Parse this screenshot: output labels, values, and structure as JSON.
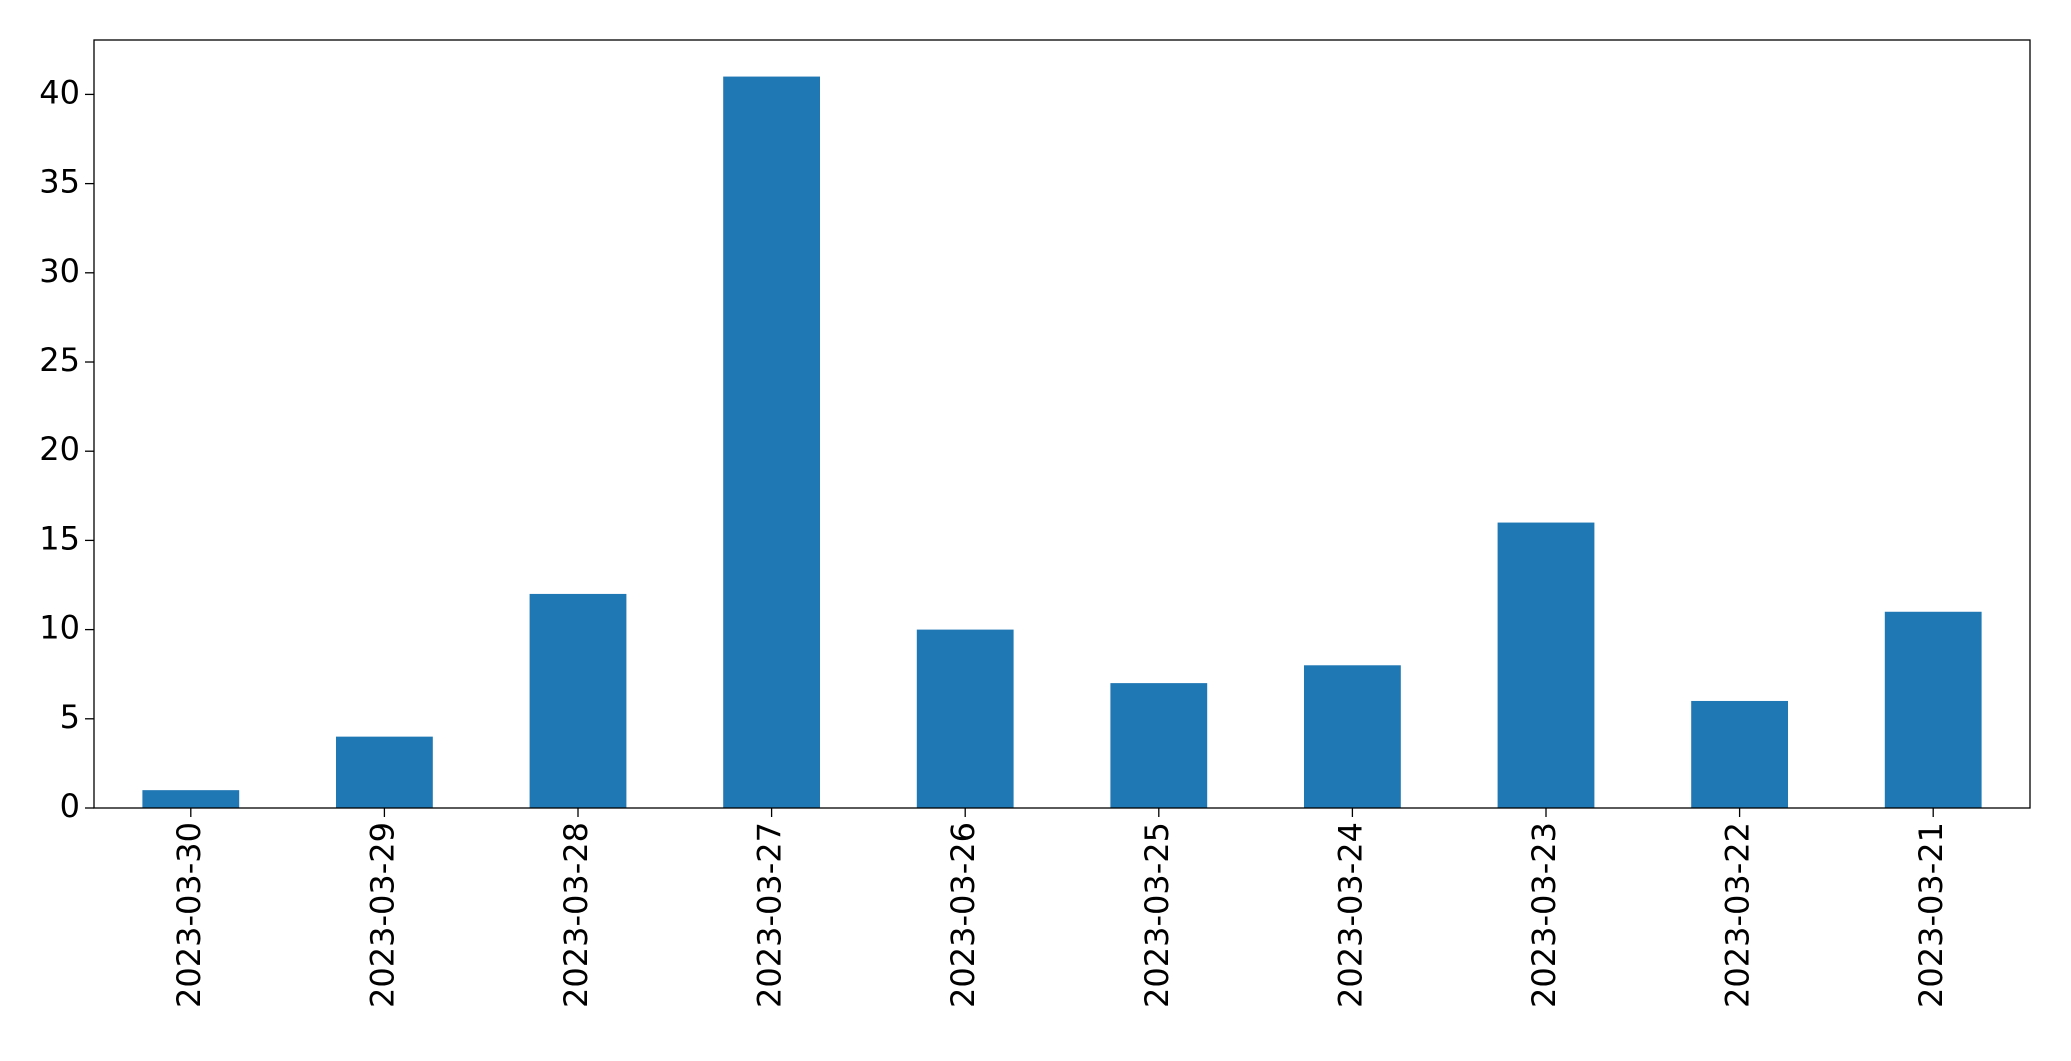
{
  "chart_data": {
    "type": "bar",
    "categories": [
      "2023-03-30",
      "2023-03-29",
      "2023-03-28",
      "2023-03-27",
      "2023-03-26",
      "2023-03-25",
      "2023-03-24",
      "2023-03-23",
      "2023-03-22",
      "2023-03-21"
    ],
    "values": [
      1,
      4,
      12,
      41,
      10,
      7,
      8,
      16,
      6,
      11
    ],
    "color": "#1f77b4",
    "ylim": [
      0,
      43.05
    ],
    "yticks": [
      0,
      5,
      10,
      15,
      20,
      25,
      30,
      35,
      40
    ],
    "grid": false
  }
}
